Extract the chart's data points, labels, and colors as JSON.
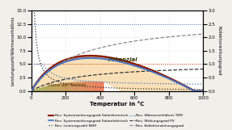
{
  "xlabel": "Temperatur in °C",
  "ylabel_left": "Leistungszahl/Wärmeverhältnis",
  "ylabel_right": "Kollektorwirkungsgrad",
  "xlim": [
    0,
    1000
  ],
  "ylim_left": [
    0,
    15
  ],
  "ylim_right": [
    0,
    3
  ],
  "yticks_left": [
    0,
    2.5,
    5.0,
    7.5,
    10.0,
    12.5,
    15.0
  ],
  "yticks_right": [
    0,
    0.5,
    1.0,
    1.5,
    2.0,
    2.5,
    3.0
  ],
  "xticks": [
    0,
    200,
    400,
    600,
    800,
    1000
  ],
  "bg_color": "#f0efea",
  "plot_bg": "#ffffff",
  "hline_red_y": 5.0,
  "hline_blue_y_right": 2.5,
  "color_red": "#8B1A00",
  "color_blue": "#4472C4",
  "color_dark": "#333333",
  "color_gray": "#888888",
  "color_orange": "#E87010",
  "color_lightpot": "#F5C87A",
  "color_green": "#7B9A40"
}
